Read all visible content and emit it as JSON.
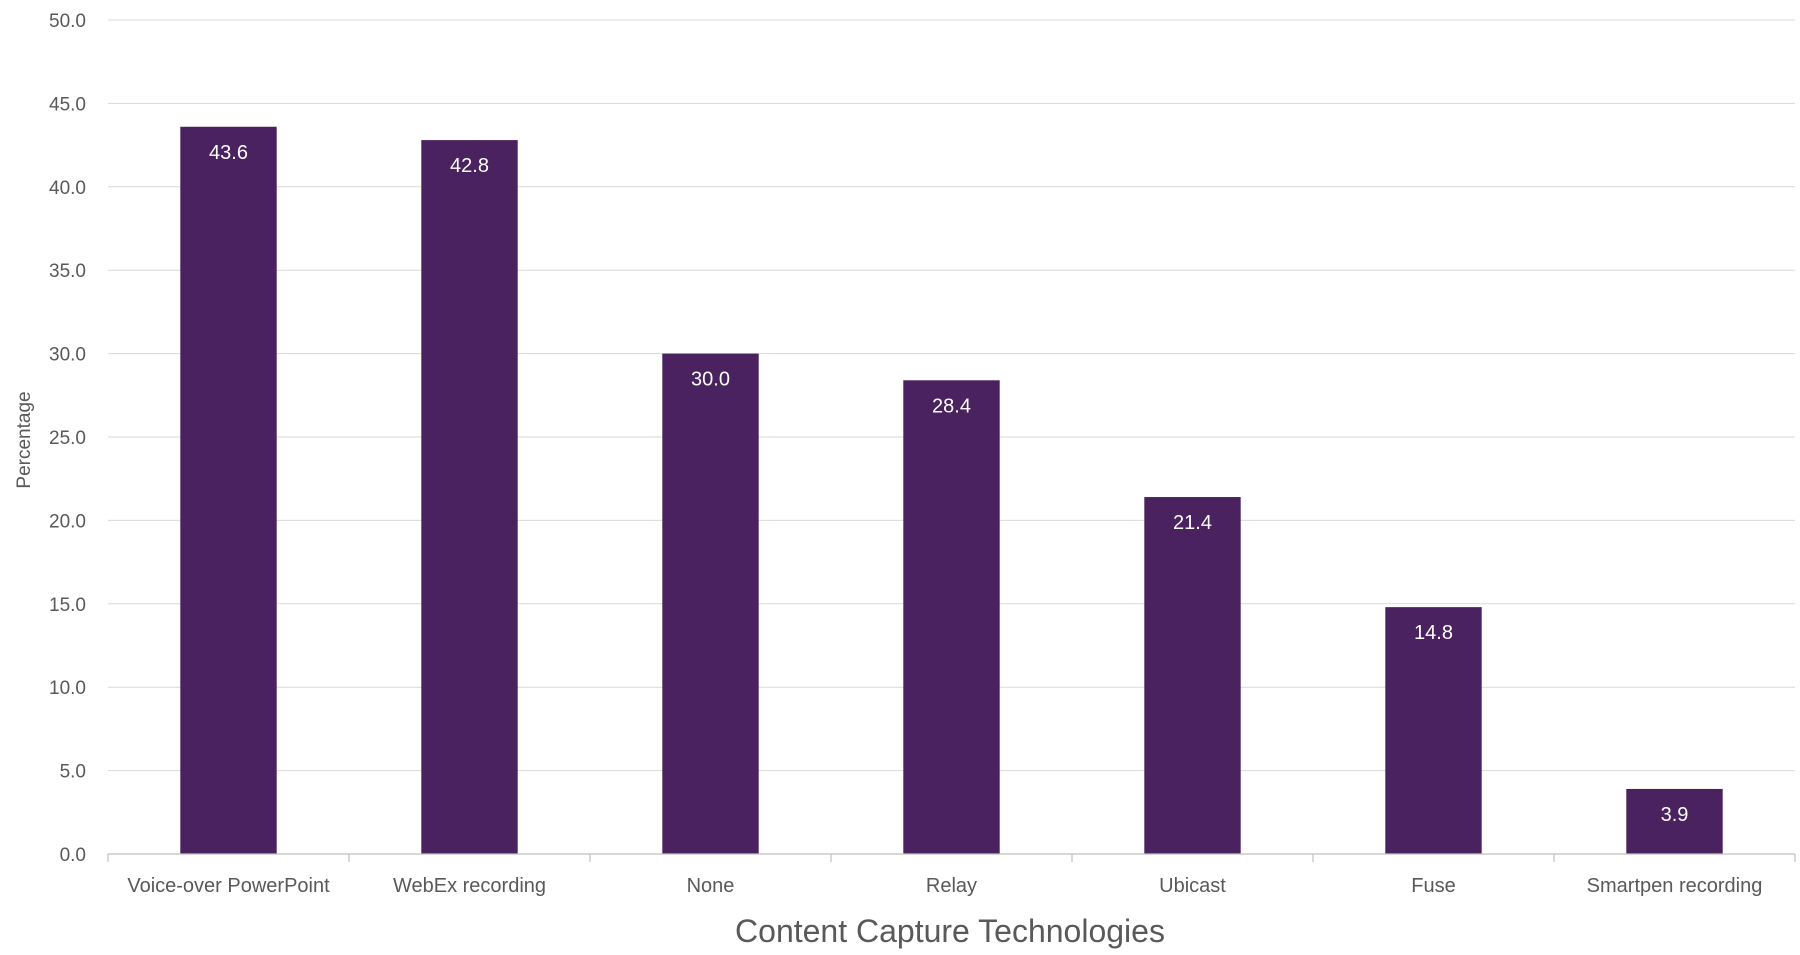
{
  "chart_data": {
    "type": "bar",
    "categories": [
      "Voice-over PowerPoint",
      "WebEx recording",
      "None",
      "Relay",
      "Ubicast",
      "Fuse",
      "Smartpen recording"
    ],
    "series": [
      {
        "values": [
          43.6,
          42.8,
          30.0,
          28.4,
          21.4,
          14.8,
          3.9
        ],
        "labels": [
          "43.6",
          "42.8",
          "30.0",
          "28.4",
          "21.4",
          "14.8",
          "3.9"
        ],
        "color": "#4a2260"
      }
    ],
    "yticks": [
      "0.0",
      "5.0",
      "10.0",
      "15.0",
      "20.0",
      "25.0",
      "30.0",
      "35.0",
      "40.0",
      "45.0",
      "50.0"
    ],
    "ylim": [
      0,
      50
    ],
    "xlabel": "Content Capture Technologies",
    "ylabel": "Percentage",
    "grid": true,
    "legend": "none",
    "colors": {
      "bar": "#4a2260",
      "gridline": "#d9d9d9",
      "axis": "#bfbfbf",
      "text": "#595959",
      "bar_label": "#ffffff"
    }
  }
}
